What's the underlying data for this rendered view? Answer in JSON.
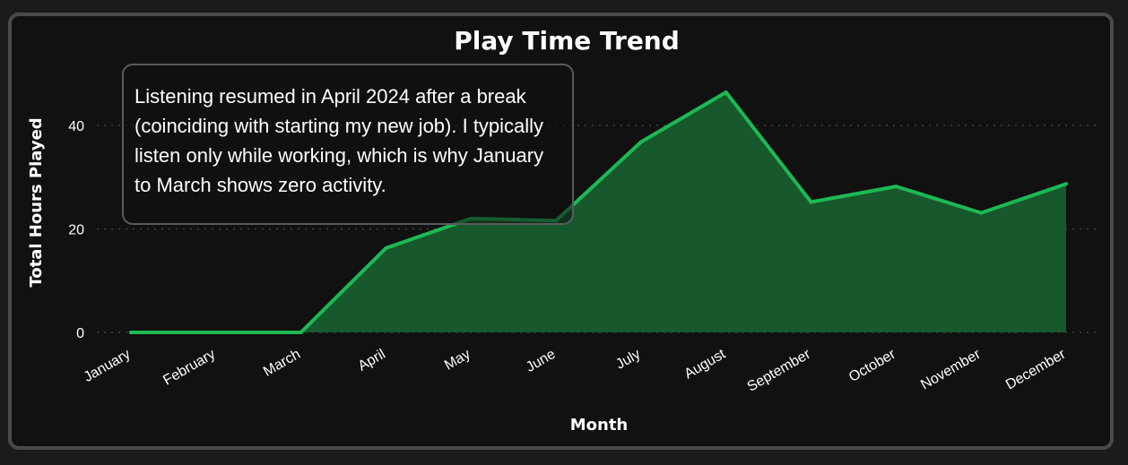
{
  "chart_data": {
    "type": "area",
    "title": "Play Time Trend",
    "xlabel": "Month",
    "ylabel": "Total Hours Played",
    "categories": [
      "January",
      "February",
      "March",
      "April",
      "May",
      "June",
      "July",
      "August",
      "September",
      "October",
      "November",
      "December"
    ],
    "series": [
      {
        "values": [
          0,
          0,
          0,
          16.3,
          22,
          21.6,
          36.8,
          46.4,
          25.2,
          28.2,
          23.1,
          28.7
        ]
      }
    ],
    "ylim": [
      0,
      50
    ],
    "yticks": [
      0,
      20,
      40
    ],
    "grid": true,
    "colors": {
      "line": "#1db954",
      "fill": "#17582d",
      "background": "#111111"
    },
    "annotation": "Listening resumed in April 2024 after a break (coinciding with starting my new job). I typically listen only while working, which is why January to March shows zero activity."
  }
}
